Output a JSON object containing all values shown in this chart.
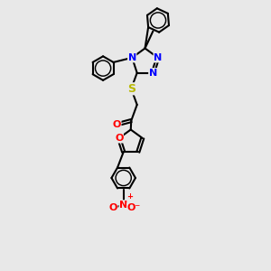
{
  "bg_color": "#e8e8e8",
  "bond_color": "#000000",
  "bond_width": 1.5,
  "atom_colors": {
    "N": "#0000ff",
    "O": "#ff0000",
    "S": "#b8b800",
    "C": "#000000"
  },
  "font_size": 8.0
}
